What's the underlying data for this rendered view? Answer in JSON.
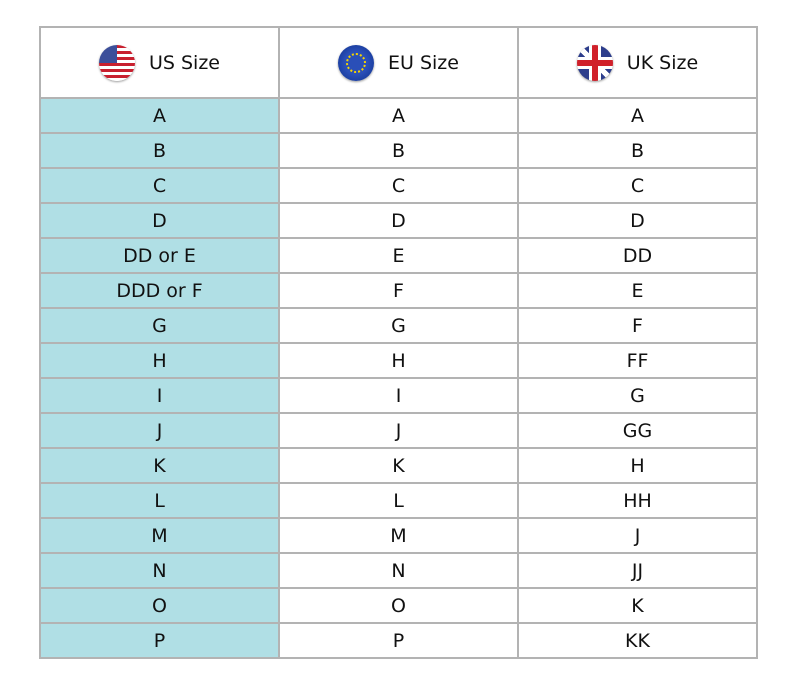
{
  "headers": [
    {
      "label": "US Size",
      "icon": "us-flag-icon"
    },
    {
      "label": "EU Size",
      "icon": "eu-flag-icon"
    },
    {
      "label": "UK Size",
      "icon": "uk-flag-icon"
    }
  ],
  "colors": {
    "us_column_bg": "#b0dfe5",
    "border": "#b3b3b3"
  },
  "rows": [
    [
      "A",
      "A",
      "A"
    ],
    [
      "B",
      "B",
      "B"
    ],
    [
      "C",
      "C",
      "C"
    ],
    [
      "D",
      "D",
      "D"
    ],
    [
      "DD or E",
      "E",
      "DD"
    ],
    [
      "DDD or F",
      "F",
      "E"
    ],
    [
      "G",
      "G",
      "F"
    ],
    [
      "H",
      "H",
      "FF"
    ],
    [
      "I",
      "I",
      "G"
    ],
    [
      "J",
      "J",
      "GG"
    ],
    [
      "K",
      "K",
      "H"
    ],
    [
      "L",
      "L",
      "HH"
    ],
    [
      "M",
      "M",
      "J"
    ],
    [
      "N",
      "N",
      "JJ"
    ],
    [
      "O",
      "O",
      "K"
    ],
    [
      "P",
      "P",
      "KK"
    ]
  ]
}
